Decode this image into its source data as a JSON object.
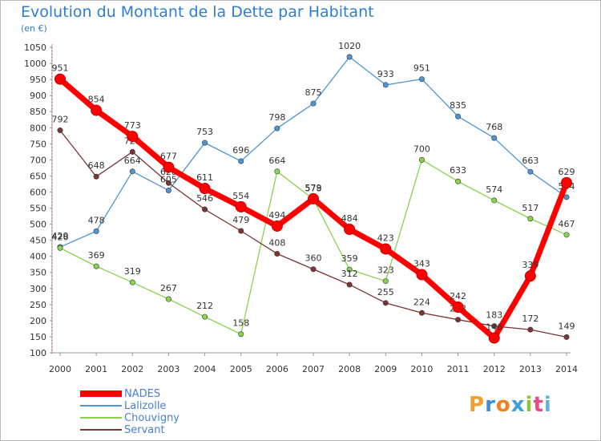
{
  "title": "Evolution du Montant de la Dette par Habitant",
  "subtitle": "(en €)",
  "brand": {
    "text": "Proxiti",
    "letters": [
      "P",
      "r",
      "o",
      "x",
      "i",
      "t",
      "i"
    ],
    "colors": [
      "#f0a030",
      "#3a8fd8",
      "#f08020",
      "#3aa0e0",
      "#8cc63f",
      "#e84a8a",
      "#60b0e0"
    ]
  },
  "chart_data": {
    "type": "line",
    "title": "Evolution du Montant de la Dette par Habitant",
    "ylabel": "(en €)",
    "x": [
      "2000",
      "2001",
      "2002",
      "2003",
      "2004",
      "2005",
      "2006",
      "2007",
      "2008",
      "2009",
      "2010",
      "2011",
      "2012",
      "2013",
      "2014"
    ],
    "ylim": [
      100,
      1050
    ],
    "yticks": [
      100,
      150,
      200,
      250,
      300,
      350,
      400,
      450,
      500,
      550,
      600,
      650,
      700,
      750,
      800,
      850,
      900,
      950,
      1000,
      1050
    ],
    "grid": false,
    "legend": "bottom-left",
    "series": [
      {
        "name": "NADES",
        "color": "#ff0000",
        "values": [
          951,
          854,
          773,
          677,
          611,
          554,
          494,
          579,
          484,
          423,
          343,
          242,
          146,
          339,
          629
        ]
      },
      {
        "name": "Lalizolle",
        "color": "#4f95d0",
        "values": [
          429,
          478,
          664,
          605,
          753,
          696,
          798,
          875,
          1020,
          933,
          951,
          835,
          768,
          663,
          584
        ]
      },
      {
        "name": "Chouvigny",
        "color": "#88d44c",
        "values": [
          426,
          369,
          319,
          267,
          212,
          158,
          664,
          578,
          359,
          323,
          700,
          633,
          574,
          517,
          467
        ]
      },
      {
        "name": "Servant",
        "color": "#7a3434",
        "values": [
          792,
          648,
          725,
          628,
          546,
          479,
          408,
          360,
          312,
          255,
          224,
          203,
          183,
          172,
          149
        ]
      }
    ]
  }
}
